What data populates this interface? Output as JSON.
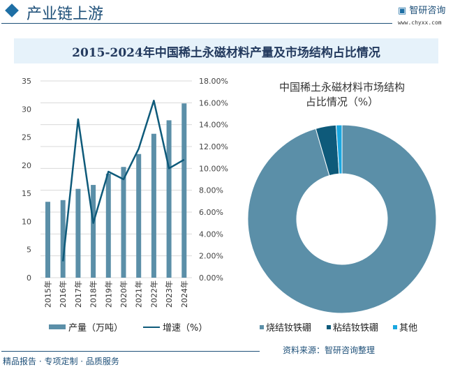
{
  "header": {
    "section_title": "产业链上游",
    "brand": "智研咨询",
    "brand_url": "www.chyxx.com"
  },
  "title": "2015-2024年中国稀土永磁材料产量及市场结构占比情况",
  "footer": {
    "tagline": "精品报告 · 专项定制 · 品质服务",
    "source": "资料来源：智研咨询整理"
  },
  "colors": {
    "bar": "#5b8fa8",
    "line": "#0e5a7a",
    "bonded": "#0e5a7a",
    "other": "#1aa7e0"
  },
  "chart_data": [
    {
      "type": "bar+line",
      "categories": [
        "2015年",
        "2016年",
        "2017年",
        "2018年",
        "2019年",
        "2020年",
        "2021年",
        "2022年",
        "2023年",
        "2024年"
      ],
      "series": [
        {
          "name": "产量（万吨）",
          "type": "bar",
          "axis": "left",
          "values": [
            13.5,
            13.8,
            15.8,
            16.5,
            18.5,
            19.7,
            22.0,
            25.6,
            28.0,
            31.0
          ]
        },
        {
          "name": "增速（%）",
          "type": "line",
          "axis": "right",
          "values": [
            null,
            1.5,
            14.5,
            5.0,
            9.7,
            9.0,
            11.8,
            16.2,
            10.0,
            10.8
          ]
        }
      ],
      "yleft": {
        "range": [
          0,
          35
        ],
        "ticks": [
          "0",
          "5",
          "10",
          "15",
          "20",
          "25",
          "30",
          "35"
        ]
      },
      "yright": {
        "range": [
          0,
          18
        ],
        "ticks": [
          "0.00%",
          "2.00%",
          "4.00%",
          "6.00%",
          "8.00%",
          "10.00%",
          "12.00%",
          "14.00%",
          "16.00%",
          "18.00%"
        ]
      },
      "grid": true,
      "legend": "bottom"
    },
    {
      "type": "pie",
      "donut": true,
      "title": "中国稀土永磁材料市场结构占比情况（%）",
      "title_lines": [
        "中国稀土永磁材料市场结构",
        "占比情况（%）"
      ],
      "labels": [
        "烧结钕铁硼",
        "粘结钕铁硼",
        "其他"
      ],
      "values": [
        95.5,
        3.5,
        1.0
      ],
      "legend": "bottom"
    }
  ]
}
